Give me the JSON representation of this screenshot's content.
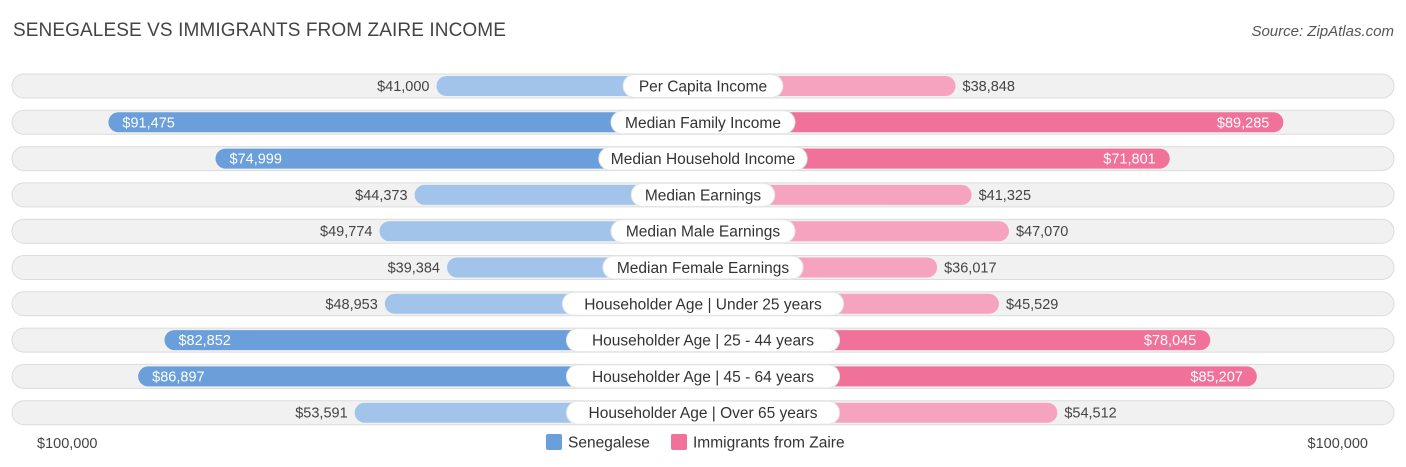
{
  "title": "SENEGALESE VS IMMIGRANTS FROM ZAIRE INCOME",
  "source": "Source: ZipAtlas.com",
  "chart_data": {
    "type": "bar",
    "orientation": "horizontal-diverging",
    "max": 100000,
    "axis_left_label": "$100,000",
    "axis_right_label": "$100,000",
    "legend_placement": "bottom-center",
    "categories": [
      "Per Capita Income",
      "Median Family Income",
      "Median Household Income",
      "Median Earnings",
      "Median Male Earnings",
      "Median Female Earnings",
      "Householder Age | Under 25 years",
      "Householder Age | 25 - 44 years",
      "Householder Age | 45 - 64 years",
      "Householder Age | Over 65 years"
    ],
    "series": [
      {
        "name": "Senegalese",
        "color": "#6a9fdc",
        "color_light": "#a3c4ea",
        "values": [
          41000,
          91475,
          74999,
          44373,
          49774,
          39384,
          48953,
          82852,
          86897,
          53591
        ],
        "labels": [
          "$41,000",
          "$91,475",
          "$74,999",
          "$44,373",
          "$49,774",
          "$39,384",
          "$48,953",
          "$82,852",
          "$86,897",
          "$53,591"
        ]
      },
      {
        "name": "Immigrants from Zaire",
        "color": "#f07199",
        "color_light": "#f5a3bf",
        "values": [
          38848,
          89285,
          71801,
          41325,
          47070,
          36017,
          45529,
          78045,
          85207,
          54512
        ],
        "labels": [
          "$38,848",
          "$89,285",
          "$71,801",
          "$41,325",
          "$47,070",
          "$36,017",
          "$45,529",
          "$78,045",
          "$85,207",
          "$54,512"
        ]
      }
    ]
  }
}
